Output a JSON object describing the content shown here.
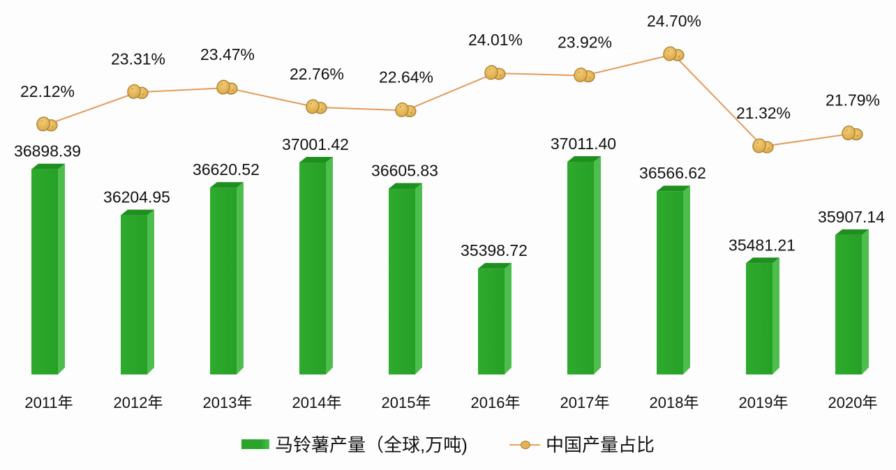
{
  "chart_data": {
    "type": "bar+line",
    "title": "",
    "categories": [
      "2011年",
      "2012年",
      "2013年",
      "2014年",
      "2015年",
      "2016年",
      "2017年",
      "2018年",
      "2019年",
      "2020年"
    ],
    "series": [
      {
        "name": "马铃薯产量（全球,万吨)",
        "type": "bar",
        "axis": "primary",
        "color": "#2aa52a",
        "values": [
          36898.39,
          36204.95,
          36620.52,
          37001.42,
          36605.83,
          35398.72,
          37011.4,
          36566.62,
          35481.21,
          35907.14
        ],
        "labels": [
          "36898.39",
          "36204.95",
          "36620.52",
          "37001.42",
          "36605.83",
          "35398.72",
          "37011.40",
          "36566.62",
          "35481.21",
          "35907.14"
        ]
      },
      {
        "name": "中国产量占比",
        "type": "line",
        "axis": "secondary",
        "color": "#e8a060",
        "marker": "potato-icon",
        "values": [
          22.12,
          23.31,
          23.47,
          22.76,
          22.64,
          24.01,
          23.92,
          24.7,
          21.32,
          21.79
        ],
        "labels": [
          "22.12%",
          "23.31%",
          "23.47%",
          "22.76%",
          "22.64%",
          "24.01%",
          "23.92%",
          "24.70%",
          "21.32%",
          "21.79%"
        ]
      }
    ],
    "xlabel": "",
    "ylabel": "",
    "grid": false,
    "axes_visible": false,
    "legend_position": "bottom"
  },
  "legend": {
    "bar_label": "马铃薯产量（全球,万吨)",
    "line_label": "中国产量占比"
  }
}
